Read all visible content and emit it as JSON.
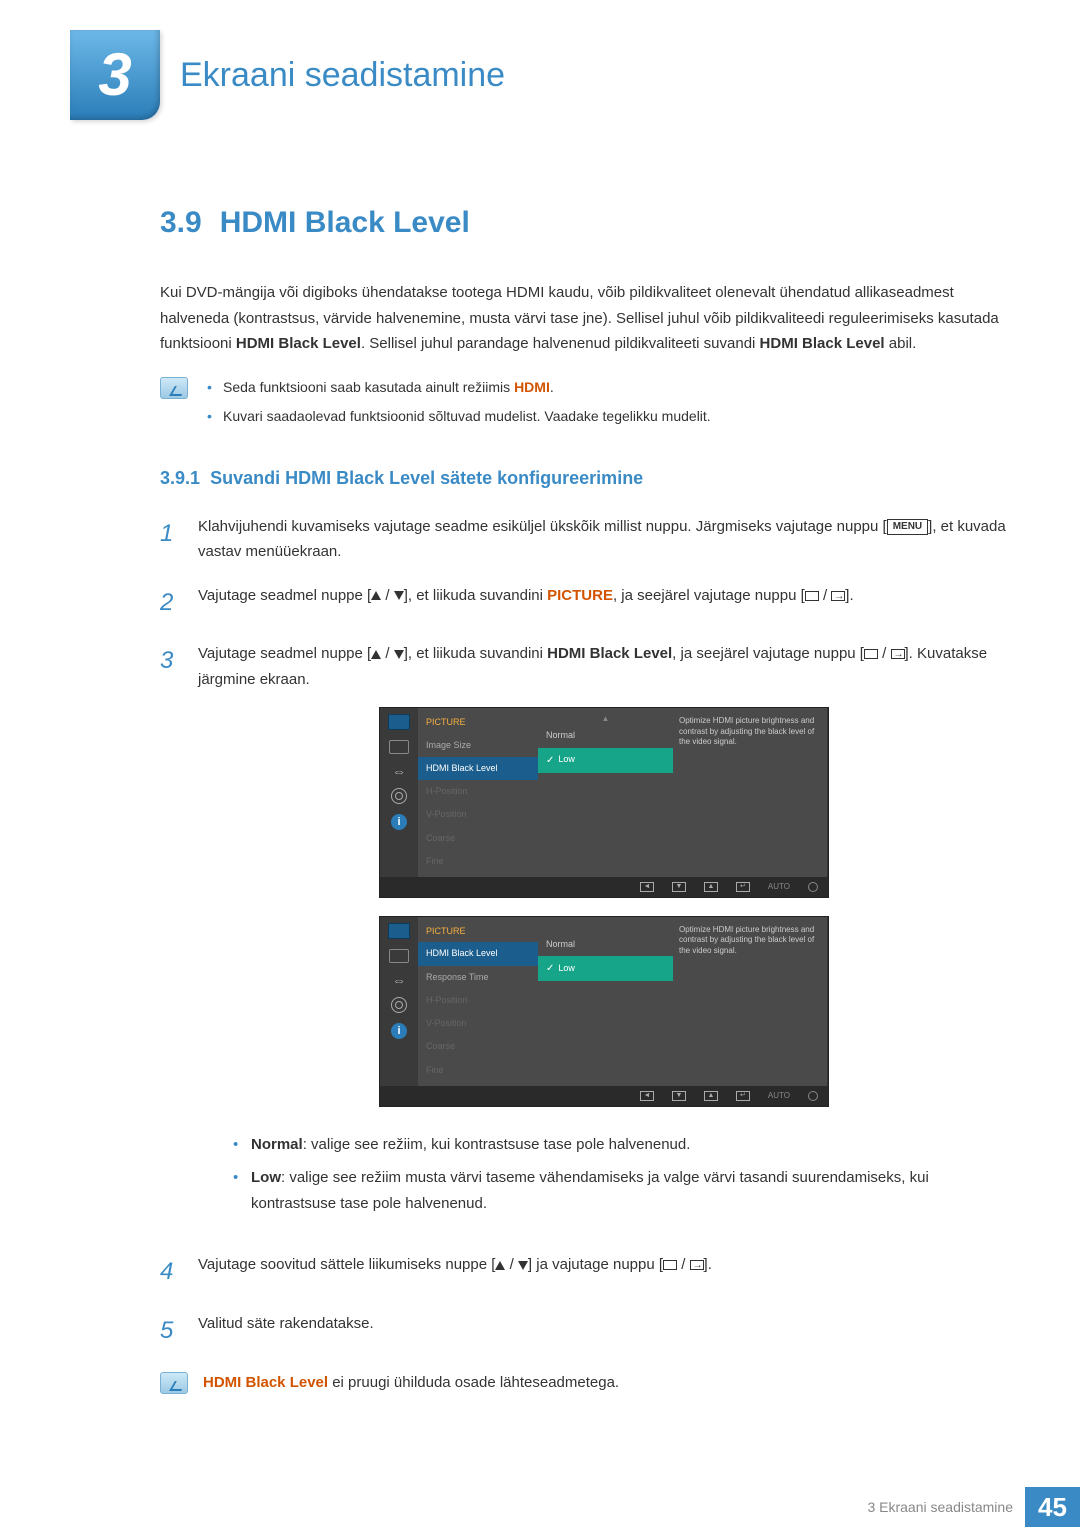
{
  "chapter": {
    "number": "3",
    "title": "Ekraani seadistamine"
  },
  "section": {
    "number": "3.9",
    "title": "HDMI Black Level"
  },
  "intro": {
    "text1": "Kui DVD-mängija või digiboks ühendatakse tootega HDMI kaudu, võib pildikvaliteet olenevalt ühendatud allikaseadmest halveneda (kontrastsus, värvide halvenemine, musta värvi tase jne). Sellisel juhul võib pildikvaliteedi reguleerimiseks kasutada funktsiooni ",
    "bold1": "HDMI Black Level",
    "text2": ". Sellisel juhul parandage halvenenud pildikvaliteeti suvandi ",
    "bold2": "HDMI Black Level",
    "text3": " abil."
  },
  "notes1": {
    "item1_pre": "Seda funktsiooni saab kasutada ainult režiimis ",
    "item1_bold": "HDMI",
    "item1_post": ".",
    "item2": "Kuvari saadaolevad funktsioonid sõltuvad mudelist. Vaadake tegelikku mudelit."
  },
  "subsection": {
    "number": "3.9.1",
    "title": "Suvandi HDMI Black Level sätete konfigureerimine"
  },
  "steps": {
    "s1": {
      "text1": "Klahvijuhendi kuvamiseks vajutage seadme esiküljel ükskõik millist nuppu. Järgmiseks vajutage nuppu [",
      "menu": "MENU",
      "text2": "], et kuvada vastav menüüekraan."
    },
    "s2": {
      "text1": "Vajutage seadmel nuppe [",
      "text2": "], et liikuda suvandini ",
      "picture": "PICTURE",
      "text3": ", ja seejärel vajutage nuppu [",
      "text4": "]."
    },
    "s3": {
      "text1": "Vajutage seadmel nuppe [",
      "text2": "], et liikuda suvandini ",
      "bold": "HDMI Black Level",
      "text3": ", ja seejärel vajutage nuppu [",
      "text4": "]. Kuvatakse järgmine ekraan."
    },
    "s4": {
      "text1": "Vajutage soovitud sättele liikumiseks nuppe [",
      "text2": "] ja vajutage nuppu [",
      "text3": "]."
    },
    "s5": {
      "text": "Valitud säte rakendatakse."
    }
  },
  "osd": {
    "title": "PICTURE",
    "tip": "Optimize HDMI picture brightness and contrast by adjusting the black level of the video signal.",
    "auto": "AUTO",
    "menu1": {
      "items": [
        "Image Size",
        "HDMI Black Level",
        "H-Position",
        "V-Position",
        "Coarse",
        "Fine"
      ],
      "selected": 1,
      "values": [
        "Normal",
        "Low"
      ],
      "valsel": 1
    },
    "menu2": {
      "items": [
        "HDMI Black Level",
        "Response Time",
        "H-Position",
        "V-Position",
        "Coarse",
        "Fine"
      ],
      "selected": 0,
      "values": [
        "Normal",
        "Low"
      ],
      "valsel": 1
    }
  },
  "options": {
    "normal_label": "Normal",
    "normal_text": ": valige see režiim, kui kontrastsuse tase pole halvenenud.",
    "low_label": "Low",
    "low_text": ": valige see režiim musta värvi taseme vähendamiseks ja valge värvi tasandi suurendamiseks, kui kontrastsuse tase pole halvenenud."
  },
  "note2": {
    "bold": "HDMI Black Level",
    "text": " ei pruugi ühilduda osade lähteseadmetega."
  },
  "footer": {
    "label": "3 Ekraani seadistamine",
    "page": "45"
  }
}
